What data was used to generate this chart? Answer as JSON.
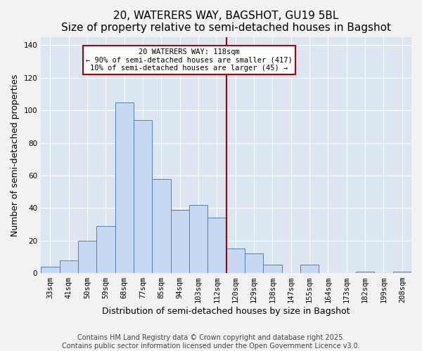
{
  "title": "20, WATERERS WAY, BAGSHOT, GU19 5BL",
  "subtitle": "Size of property relative to semi-detached houses in Bagshot",
  "xlabel": "Distribution of semi-detached houses by size in Bagshot",
  "ylabel": "Number of semi-detached properties",
  "bar_labels": [
    "33sqm",
    "41sqm",
    "50sqm",
    "59sqm",
    "68sqm",
    "77sqm",
    "85sqm",
    "94sqm",
    "103sqm",
    "112sqm",
    "120sqm",
    "129sqm",
    "138sqm",
    "147sqm",
    "155sqm",
    "164sqm",
    "173sqm",
    "182sqm",
    "199sqm",
    "208sqm"
  ],
  "bar_values": [
    4,
    8,
    20,
    29,
    105,
    94,
    58,
    39,
    42,
    34,
    15,
    12,
    5,
    0,
    5,
    0,
    0,
    1,
    0,
    1
  ],
  "bar_color": "#c6d9f1",
  "bar_edge_color": "#4f81bd",
  "vline_x_index": 10,
  "vline_color": "#aa0000",
  "annotation_title": "20 WATERERS WAY: 118sqm",
  "annotation_line1": "← 90% of semi-detached houses are smaller (417)",
  "annotation_line2": "10% of semi-detached houses are larger (45) →",
  "annotation_box_color": "#ffffff",
  "annotation_box_edge": "#aa0000",
  "ylim": [
    0,
    145
  ],
  "yticks": [
    0,
    20,
    40,
    60,
    80,
    100,
    120,
    140
  ],
  "footer1": "Contains HM Land Registry data © Crown copyright and database right 2025.",
  "footer2": "Contains public sector information licensed under the Open Government Licence v3.0.",
  "plot_bg_color": "#dce6f1",
  "fig_bg_color": "#f2f2f2",
  "grid_color": "#ffffff",
  "title_fontsize": 11,
  "axis_label_fontsize": 9,
  "tick_fontsize": 7.5,
  "footer_fontsize": 7,
  "annot_fontsize": 7.5
}
